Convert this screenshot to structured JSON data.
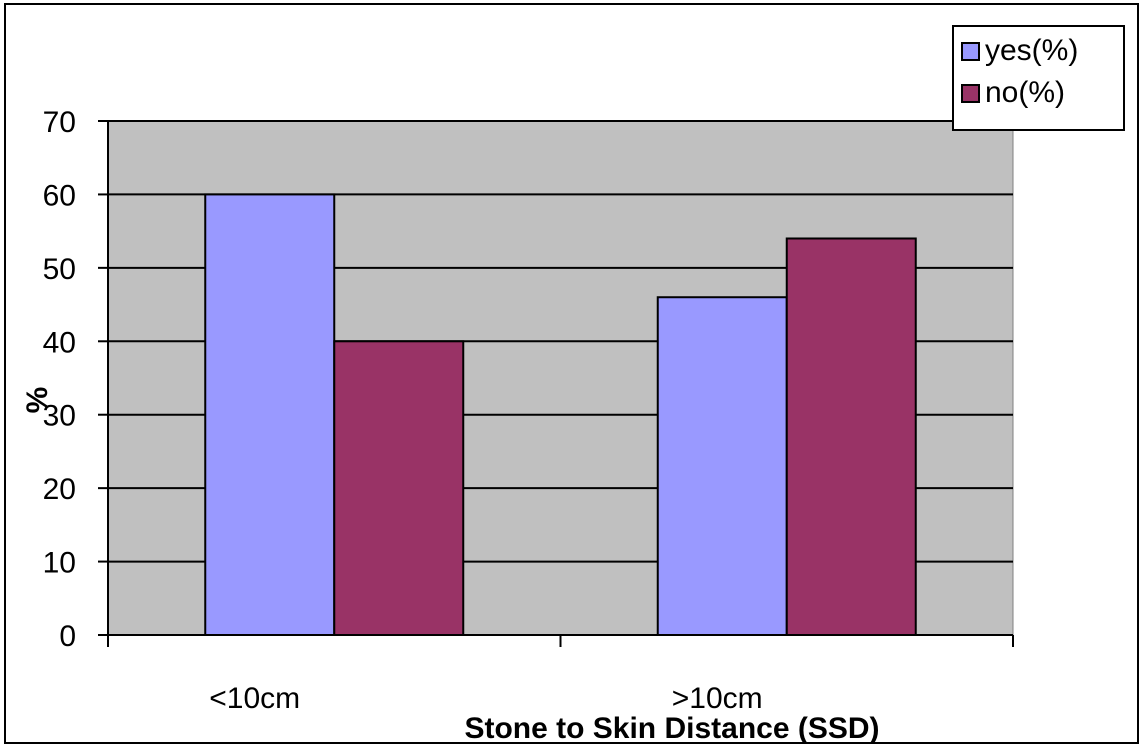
{
  "chart_data": {
    "type": "bar",
    "title": "",
    "categories": [
      "<10cm",
      ">10cm"
    ],
    "series": [
      {
        "name": "yes(%)",
        "values": [
          60,
          46
        ],
        "color": "#9999FF"
      },
      {
        "name": "no(%)",
        "values": [
          40,
          54
        ],
        "color": "#993366"
      }
    ],
    "xlabel": "Stone to Skin Distance (SSD)",
    "ylabel": "%",
    "ylim": [
      0,
      70
    ],
    "yticks": [
      "0",
      "10",
      "20",
      "30",
      "40",
      "50",
      "60",
      "70"
    ],
    "grid": true,
    "plot_background": "#C0C0C0",
    "legend_position": "top-right"
  }
}
